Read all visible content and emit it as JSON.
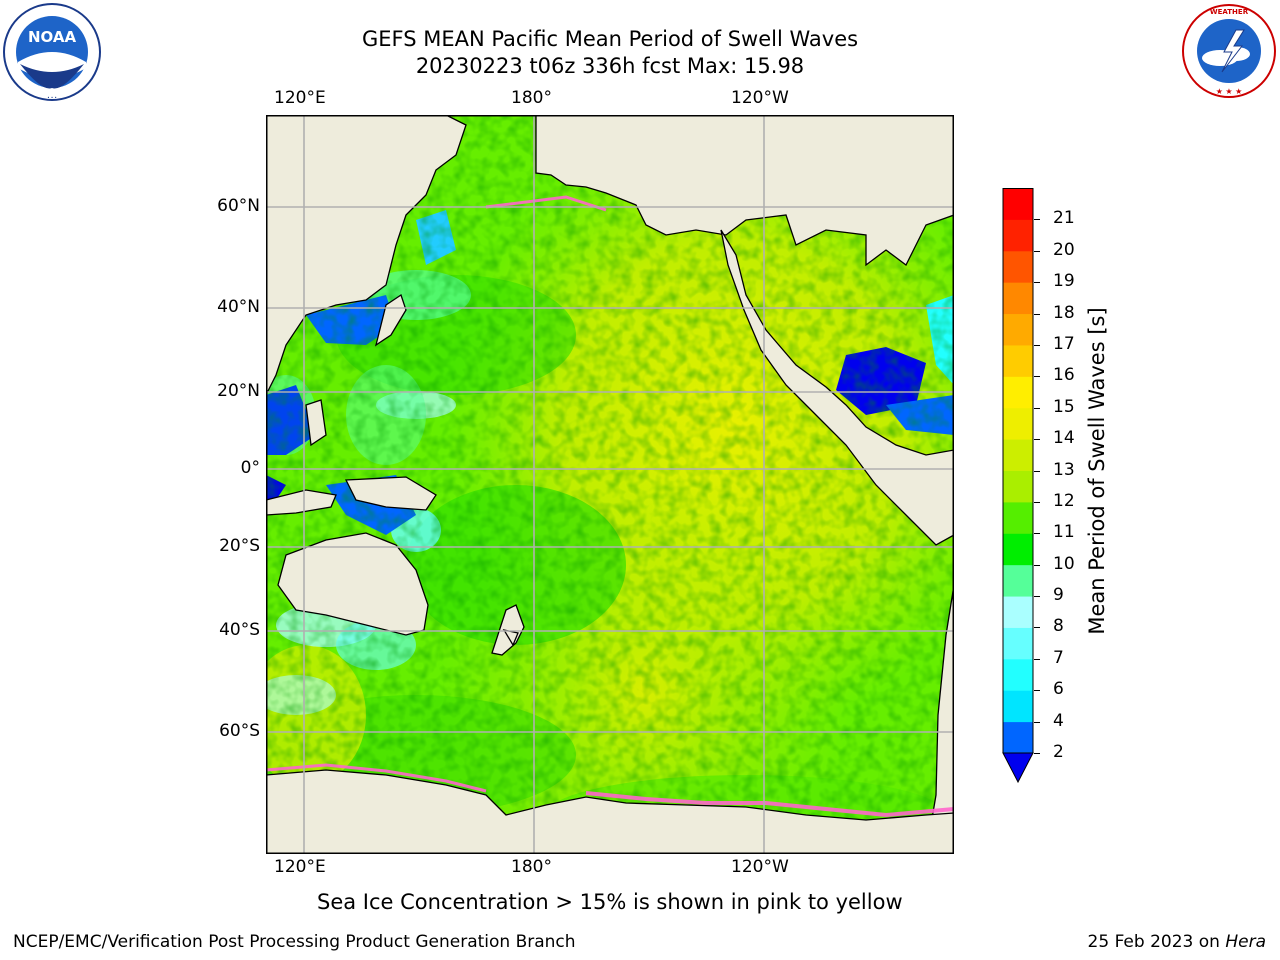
{
  "header": {
    "title_line1": "GEFS MEAN Pacific Mean Period of Swell Waves",
    "title_line2": "20230223 t06z 336h fcst   Max: 15.98"
  },
  "logos": {
    "noaa_text": "NOAA",
    "noaa_ring_text": "NATIONAL OCEANIC AND ATMOSPHERIC ADMINISTRATION · U.S. DEPARTMENT OF COMMERCE",
    "nws_ring_text": "NATIONAL WEATHER SERVICE"
  },
  "map": {
    "lon_ticks_top": [
      "120°E",
      "180°",
      "120°W"
    ],
    "lon_ticks_bottom": [
      "120°E",
      "180°",
      "120°W"
    ],
    "lat_ticks": [
      "60°N",
      "40°N",
      "20°N",
      "0°",
      "20°S",
      "40°S",
      "60°S"
    ],
    "colors": {
      "land": "#eeecdc",
      "grid": "#b0b0b0"
    }
  },
  "colorbar": {
    "label": "Mean Period of Swell Waves [s]",
    "tick_labels": [
      "2",
      "4",
      "6",
      "7",
      "8",
      "9",
      "10",
      "11",
      "12",
      "13",
      "14",
      "15",
      "16",
      "17",
      "18",
      "19",
      "20",
      "21"
    ],
    "bin_colors": [
      "#0066ff",
      "#00e5ff",
      "#22ffff",
      "#66ffff",
      "#aaffff",
      "#55ff99",
      "#00ee00",
      "#55ee00",
      "#aaee00",
      "#ccee00",
      "#eeee00",
      "#ffee00",
      "#ffcc00",
      "#ffaa00",
      "#ff8800",
      "#ff5500",
      "#ff2200",
      "#ff0000"
    ],
    "under_color": "#0000ee"
  },
  "caption": "Sea Ice Concentration > 15% is shown in pink to yellow",
  "footer": {
    "left": "NCEP/EMC/Verification Post Processing Product Generation Branch",
    "right_prefix": "25 Feb 2023 on ",
    "right_host": "Hera"
  }
}
